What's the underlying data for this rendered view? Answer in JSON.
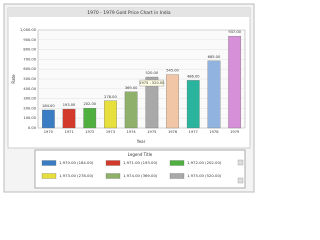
{
  "chart_data": {
    "type": "bar",
    "title": "1970 - 1979 Gold Price Chart in India",
    "x_label": "Year",
    "y_label": "Rate",
    "categories": [
      "1970",
      "1971",
      "1972",
      "1973",
      "1974",
      "1975",
      "1976",
      "1977",
      "1978",
      "1979"
    ],
    "values": [
      184,
      193,
      202,
      278,
      369,
      520,
      545,
      486,
      685,
      937
    ],
    "value_labels": [
      "184.00",
      "193.00",
      "202.00",
      "278.00",
      "369.00",
      "520.00",
      "545.00",
      "486.00",
      "685.00",
      "937.00"
    ],
    "colors": [
      "#3b7dc4",
      "#d33a2c",
      "#4faf3f",
      "#e6df3c",
      "#8eb06a",
      "#a9a9a9",
      "#f1c6a6",
      "#2ab39d",
      "#90b3df",
      "#d690d8"
    ],
    "ylim": [
      0,
      1000
    ],
    "yticks": [
      {
        "value": 0,
        "label": "0.00"
      },
      {
        "value": 100,
        "label": "100.00"
      },
      {
        "value": 200,
        "label": "200.00"
      },
      {
        "value": 300,
        "label": "300.00"
      },
      {
        "value": 400,
        "label": "400.00"
      },
      {
        "value": 500,
        "label": "500.00"
      },
      {
        "value": 600,
        "label": "600.00"
      },
      {
        "value": 700,
        "label": "700.00"
      },
      {
        "value": 800,
        "label": "800.00"
      },
      {
        "value": 900,
        "label": "900.00"
      },
      {
        "value": 1000,
        "label": "1,000.00"
      }
    ],
    "grid": true,
    "tooltip": "1975 : 520.00",
    "legend": {
      "title": "Legend Title",
      "entries": [
        "1,970.00 (184.00)",
        "1,971.00 (193.00)",
        "1,972.00 (202.00)",
        "1,973.00 (278.00)",
        "1,974.00 (369.00)",
        "1,975.00 (520.00)"
      ]
    }
  }
}
